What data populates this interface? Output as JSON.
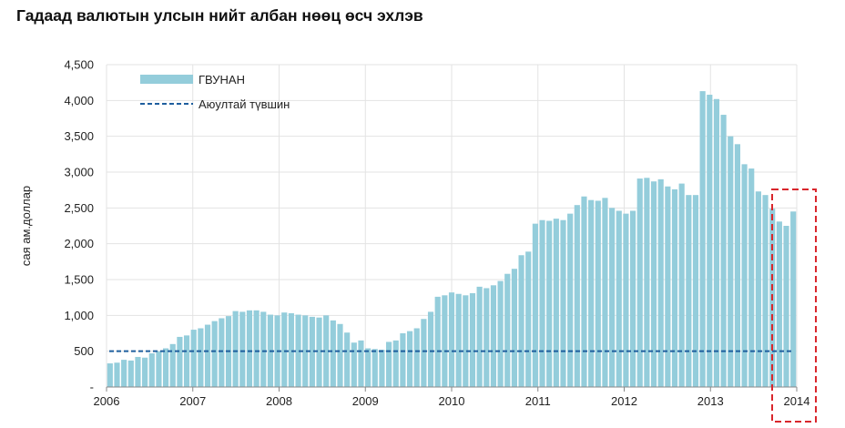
{
  "chart_data": {
    "type": "bar",
    "title": "Гадаад валютын улсын нийт албан нөөц өсч эхлэв",
    "ylabel": "сая ам.доллар",
    "xlabel": "",
    "ylim": [
      0,
      4500
    ],
    "y_ticks": [
      {
        "value": 0,
        "label": "-"
      },
      {
        "value": 500,
        "label": "500"
      },
      {
        "value": 1000,
        "label": "1,000"
      },
      {
        "value": 1500,
        "label": "1,500"
      },
      {
        "value": 2000,
        "label": "2,000"
      },
      {
        "value": 2500,
        "label": "2,500"
      },
      {
        "value": 3000,
        "label": "3,000"
      },
      {
        "value": 3500,
        "label": "3,500"
      },
      {
        "value": 4000,
        "label": "4,000"
      },
      {
        "value": 4500,
        "label": "4,500"
      }
    ],
    "x_ticks": [
      "2006",
      "2007",
      "2008",
      "2009",
      "2010",
      "2011",
      "2012",
      "2013",
      "2014"
    ],
    "grid": true,
    "legend_position": "top-left",
    "series": [
      {
        "name": "ГВУНАН",
        "type": "bar",
        "color": "#94cddb",
        "values": [
          330,
          340,
          380,
          370,
          420,
          410,
          470,
          500,
          540,
          600,
          700,
          720,
          800,
          820,
          870,
          920,
          960,
          990,
          1060,
          1050,
          1070,
          1070,
          1050,
          1010,
          1000,
          1040,
          1030,
          1010,
          1000,
          980,
          970,
          1000,
          930,
          880,
          760,
          620,
          650,
          540,
          530,
          520,
          630,
          650,
          750,
          780,
          820,
          950,
          1050,
          1260,
          1280,
          1320,
          1300,
          1280,
          1310,
          1400,
          1380,
          1420,
          1480,
          1580,
          1650,
          1840,
          1890,
          2280,
          2330,
          2320,
          2350,
          2330,
          2420,
          2540,
          2660,
          2610,
          2600,
          2640,
          2500,
          2460,
          2420,
          2460,
          2910,
          2920,
          2870,
          2900,
          2800,
          2760,
          2840,
          2680,
          2680,
          4130,
          4080,
          4020,
          3800,
          3500,
          3390,
          3110,
          3050,
          2730,
          2680,
          2490,
          2310,
          2250,
          2450
        ]
      },
      {
        "name": "Аюултай түвшин",
        "type": "dashed-line",
        "color": "#1f5f9e",
        "value": 500
      }
    ],
    "annotations": [
      {
        "type": "dashed-rectangle",
        "color": "#d9262c",
        "highlight": "2014"
      }
    ]
  }
}
